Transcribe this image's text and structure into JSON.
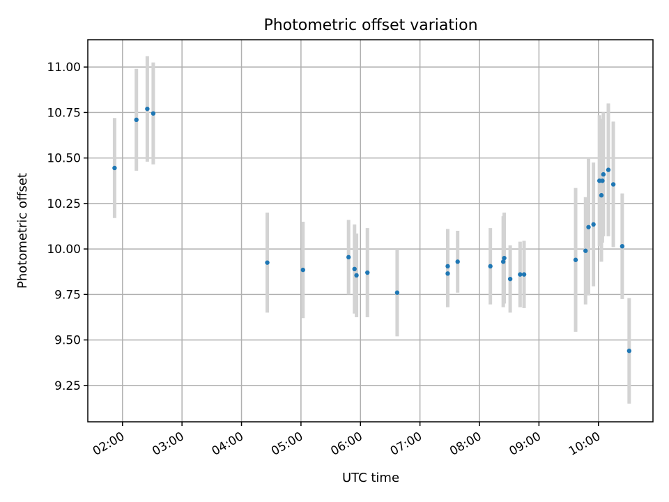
{
  "chart_data": {
    "type": "scatter",
    "title": "Photometric offset variation",
    "xlabel": "UTC time",
    "ylabel": "Photometric offset",
    "x_unit": "UTC time (HH:MM)",
    "xlim": [
      "01:25",
      "10:55"
    ],
    "ylim": [
      9.05,
      11.15
    ],
    "x_ticks": [
      "02:00",
      "03:00",
      "04:00",
      "05:00",
      "06:00",
      "07:00",
      "08:00",
      "09:00",
      "10:00"
    ],
    "y_ticks": [
      "9.25",
      "9.50",
      "9.75",
      "10.00",
      "10.25",
      "10.50",
      "10.75",
      "11.00"
    ],
    "grid": true,
    "marker_color": "#1f77b4",
    "errorbar_color": "#d3d3d3",
    "points": [
      {
        "x": "01:52",
        "y": 10.445,
        "yerr": 0.275
      },
      {
        "x": "02:14",
        "y": 10.71,
        "yerr": 0.28
      },
      {
        "x": "02:25",
        "y": 10.77,
        "yerr": 0.29
      },
      {
        "x": "02:31",
        "y": 10.745,
        "yerr": 0.28
      },
      {
        "x": "04:26",
        "y": 9.925,
        "yerr": 0.275
      },
      {
        "x": "05:02",
        "y": 9.885,
        "yerr": 0.265
      },
      {
        "x": "05:48",
        "y": 9.955,
        "yerr": 0.205
      },
      {
        "x": "05:54",
        "y": 9.89,
        "yerr": 0.245
      },
      {
        "x": "05:56",
        "y": 9.855,
        "yerr": 0.23
      },
      {
        "x": "06:07",
        "y": 9.87,
        "yerr": 0.245
      },
      {
        "x": "06:37",
        "y": 9.76,
        "yerr": 0.24
      },
      {
        "x": "07:28",
        "y": 9.865,
        "yerr": 0.185
      },
      {
        "x": "07:28",
        "y": 9.905,
        "yerr": 0.205
      },
      {
        "x": "07:38",
        "y": 9.93,
        "yerr": 0.17
      },
      {
        "x": "08:11",
        "y": 9.905,
        "yerr": 0.21
      },
      {
        "x": "08:24",
        "y": 9.93,
        "yerr": 0.25
      },
      {
        "x": "08:25",
        "y": 9.95,
        "yerr": 0.25
      },
      {
        "x": "08:31",
        "y": 9.835,
        "yerr": 0.185
      },
      {
        "x": "08:41",
        "y": 9.86,
        "yerr": 0.18
      },
      {
        "x": "08:45",
        "y": 9.86,
        "yerr": 0.185
      },
      {
        "x": "09:37",
        "y": 9.94,
        "yerr": 0.395
      },
      {
        "x": "09:47",
        "y": 9.99,
        "yerr": 0.295
      },
      {
        "x": "09:50",
        "y": 10.12,
        "yerr": 0.375
      },
      {
        "x": "09:55",
        "y": 10.135,
        "yerr": 0.34
      },
      {
        "x": "10:01",
        "y": 10.375,
        "yerr": 0.36
      },
      {
        "x": "10:03",
        "y": 10.295,
        "yerr": 0.365
      },
      {
        "x": "10:04",
        "y": 10.375,
        "yerr": 0.34
      },
      {
        "x": "10:05",
        "y": 10.41,
        "yerr": 0.34
      },
      {
        "x": "10:10",
        "y": 10.435,
        "yerr": 0.365
      },
      {
        "x": "10:15",
        "y": 10.355,
        "yerr": 0.345
      },
      {
        "x": "10:24",
        "y": 10.015,
        "yerr": 0.29
      },
      {
        "x": "10:31",
        "y": 9.44,
        "yerr": 0.29
      }
    ]
  }
}
